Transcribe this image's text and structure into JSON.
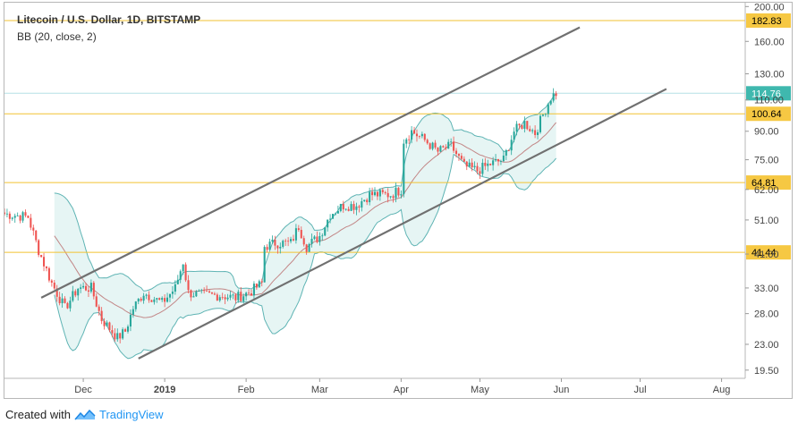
{
  "legend": {
    "title": "Litecoin / U.S. Dollar, 1D, BITSTAMP",
    "indicator": "BB (20, close, 2)"
  },
  "footer": {
    "created_with": "Created with",
    "brand": "TradingView"
  },
  "colors": {
    "up": "#26a69a",
    "down": "#ef5350",
    "band_fill": "#e0f2f1",
    "band_line": "#5fb4b4",
    "basis_line": "#c28686",
    "level_line": "#f2c230",
    "price_line": "#b6e0e6",
    "trend_line": "#707070",
    "level_label_bg": "#f6c843",
    "price_label_bg": "#3fb8ae"
  },
  "chart_data": {
    "type": "candlestick",
    "title": "Litecoin / U.S. Dollar, 1D, BITSTAMP",
    "y_scale": "log",
    "ylim": [
      18.5,
      205
    ],
    "y_ticks": [
      "200.00",
      "160.00",
      "130.00",
      "110.00",
      "90.00",
      "75.00",
      "62.00",
      "51.00",
      "41.00",
      "33.00",
      "28.00",
      "23.00",
      "19.50"
    ],
    "x_range": [
      "2018-11-01",
      "2019-08-10"
    ],
    "x_ticks": [
      {
        "label": "Dec",
        "date": "2018-12-01"
      },
      {
        "label": "2019",
        "date": "2019-01-01"
      },
      {
        "label": "Feb",
        "date": "2019-02-01"
      },
      {
        "label": "Mar",
        "date": "2019-03-01"
      },
      {
        "label": "Apr",
        "date": "2019-04-01"
      },
      {
        "label": "May",
        "date": "2019-05-01"
      },
      {
        "label": "Jun",
        "date": "2019-06-01"
      },
      {
        "label": "Jul",
        "date": "2019-07-01"
      },
      {
        "label": "Aug",
        "date": "2019-08-01"
      }
    ],
    "price_anchors": [
      [
        "2018-11-01",
        53
      ],
      [
        "2018-11-10",
        52
      ],
      [
        "2018-11-14",
        42
      ],
      [
        "2018-11-19",
        34
      ],
      [
        "2018-11-24",
        29
      ],
      [
        "2018-11-29",
        33
      ],
      [
        "2018-12-04",
        33
      ],
      [
        "2018-12-08",
        27
      ],
      [
        "2018-12-14",
        24
      ],
      [
        "2018-12-17",
        25
      ],
      [
        "2018-12-20",
        29
      ],
      [
        "2018-12-24",
        32
      ],
      [
        "2018-12-31",
        30
      ],
      [
        "2019-01-05",
        33
      ],
      [
        "2019-01-08",
        39
      ],
      [
        "2019-01-10",
        32
      ],
      [
        "2019-01-15",
        31.5
      ],
      [
        "2019-01-22",
        31.5
      ],
      [
        "2019-01-28",
        31
      ],
      [
        "2019-02-02",
        32
      ],
      [
        "2019-02-07",
        34
      ],
      [
        "2019-02-08",
        43
      ],
      [
        "2019-02-12",
        44
      ],
      [
        "2019-02-18",
        44
      ],
      [
        "2019-02-21",
        49
      ],
      [
        "2019-02-24",
        43
      ],
      [
        "2019-03-01",
        46
      ],
      [
        "2019-03-05",
        53
      ],
      [
        "2019-03-10",
        56
      ],
      [
        "2019-03-15",
        56
      ],
      [
        "2019-03-20",
        60
      ],
      [
        "2019-03-28",
        60
      ],
      [
        "2019-04-01",
        62
      ],
      [
        "2019-04-02",
        85
      ],
      [
        "2019-04-05",
        90
      ],
      [
        "2019-04-10",
        85
      ],
      [
        "2019-04-15",
        79
      ],
      [
        "2019-04-20",
        82
      ],
      [
        "2019-04-25",
        72
      ],
      [
        "2019-04-30",
        70
      ],
      [
        "2019-05-05",
        73
      ],
      [
        "2019-05-10",
        75
      ],
      [
        "2019-05-14",
        90
      ],
      [
        "2019-05-18",
        95
      ],
      [
        "2019-05-22",
        89
      ],
      [
        "2019-05-25",
        100
      ],
      [
        "2019-05-28",
        112
      ],
      [
        "2019-05-30",
        115
      ]
    ],
    "horizontal_levels": [
      {
        "value": 182.83,
        "label": "182.83"
      },
      {
        "value": 100.64,
        "label": "100.64"
      },
      {
        "value": 64.81,
        "label": "64.81"
      },
      {
        "value": 41.44,
        "label": "41.44"
      }
    ],
    "last_price": {
      "value": 114.76,
      "label": "114.76"
    },
    "trend_lines": [
      {
        "from": [
          "2018-11-15",
          31
        ],
        "to": [
          "2019-06-08",
          175
        ]
      },
      {
        "from": [
          "2018-12-22",
          21
        ],
        "to": [
          "2019-07-11",
          118
        ]
      }
    ],
    "indicator": {
      "name": "BB (20, close, 2)",
      "length": 20,
      "mult": 2
    }
  }
}
